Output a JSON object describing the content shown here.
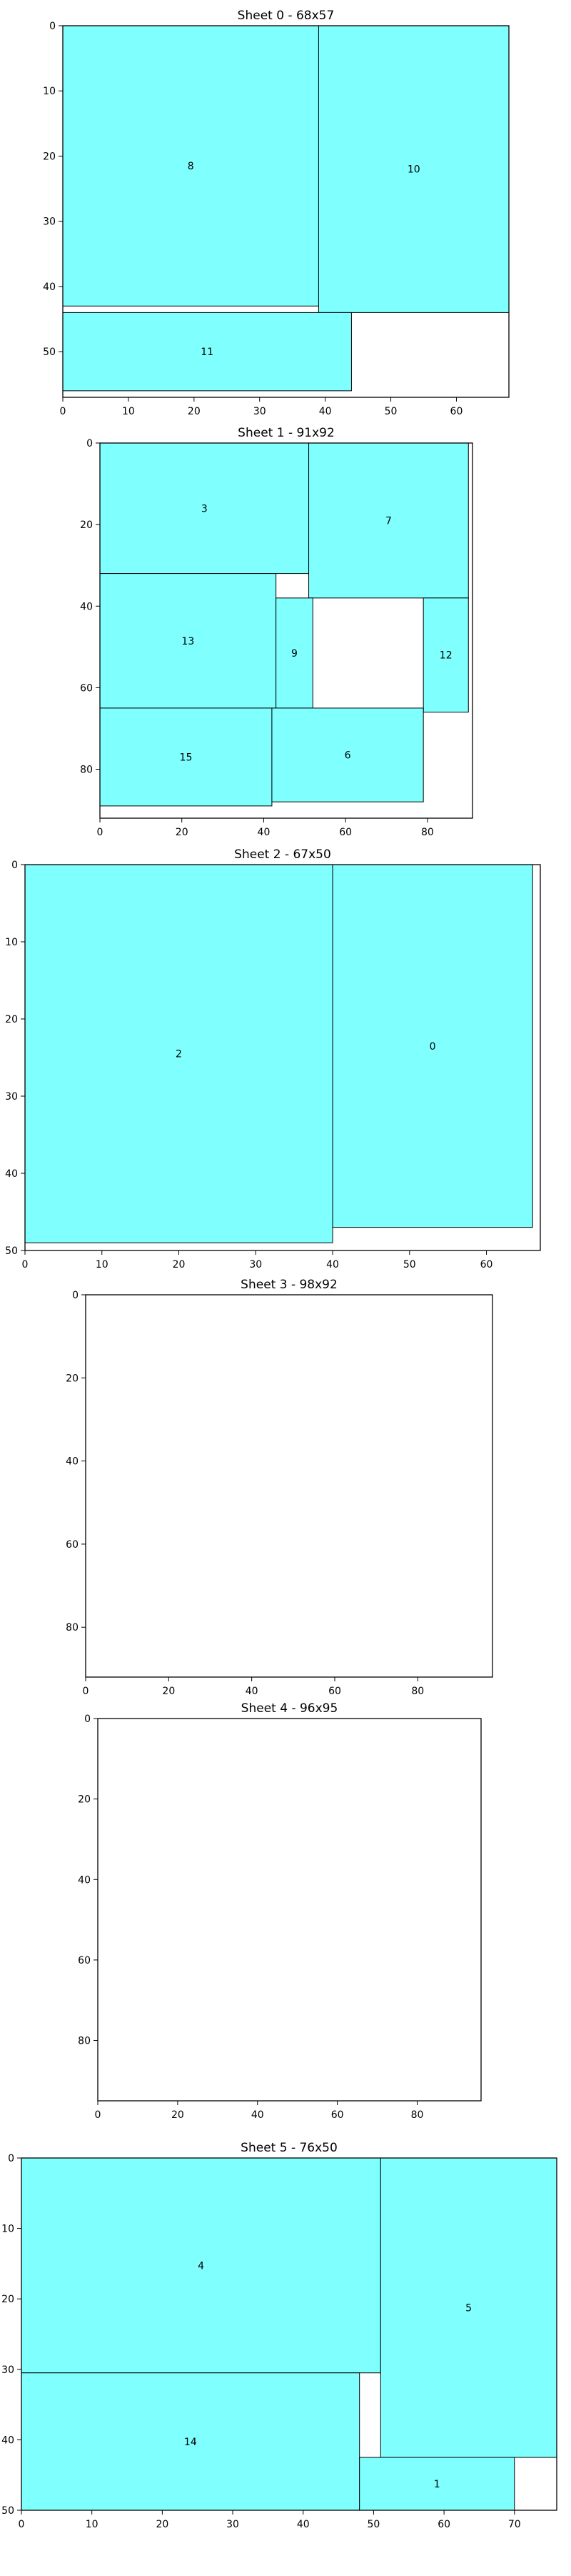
{
  "chart_data": [
    {
      "type": "bar",
      "title": "Sheet 0 - 68x57",
      "xlim": [
        0,
        68
      ],
      "ylim": [
        0,
        57
      ],
      "xticks": [
        0,
        10,
        20,
        30,
        40,
        50,
        60
      ],
      "yticks": [
        0,
        10,
        20,
        30,
        40,
        50
      ],
      "rects": [
        {
          "id": "8",
          "x": 0,
          "y": 0,
          "w": 39,
          "h": 43
        },
        {
          "id": "10",
          "x": 39,
          "y": 0,
          "w": 29,
          "h": 44
        },
        {
          "id": "11",
          "x": 0,
          "y": 44,
          "w": 44,
          "h": 12
        }
      ]
    },
    {
      "type": "bar",
      "title": "Sheet 1 - 91x92",
      "xlim": [
        0,
        91
      ],
      "ylim": [
        0,
        92
      ],
      "xticks": [
        0,
        20,
        40,
        60,
        80
      ],
      "yticks": [
        0,
        20,
        40,
        60,
        80
      ],
      "rects": [
        {
          "id": "3",
          "x": 0,
          "y": 0,
          "w": 51,
          "h": 32
        },
        {
          "id": "7",
          "x": 51,
          "y": 0,
          "w": 39,
          "h": 38
        },
        {
          "id": "13",
          "x": 0,
          "y": 32,
          "w": 43,
          "h": 33
        },
        {
          "id": "9",
          "x": 43,
          "y": 38,
          "w": 9,
          "h": 27
        },
        {
          "id": "12",
          "x": 79,
          "y": 38,
          "w": 11,
          "h": 28
        },
        {
          "id": "15",
          "x": 0,
          "y": 65,
          "w": 42,
          "h": 24
        },
        {
          "id": "6",
          "x": 42,
          "y": 65,
          "w": 37,
          "h": 23
        }
      ]
    },
    {
      "type": "bar",
      "title": "Sheet 2 - 67x50",
      "xlim": [
        0,
        67
      ],
      "ylim": [
        0,
        50
      ],
      "xticks": [
        0,
        10,
        20,
        30,
        40,
        50,
        60
      ],
      "yticks": [
        0,
        10,
        20,
        30,
        40,
        50
      ],
      "rects": [
        {
          "id": "2",
          "x": 0,
          "y": 0,
          "w": 40,
          "h": 49
        },
        {
          "id": "0",
          "x": 40,
          "y": 0,
          "w": 26,
          "h": 47
        }
      ]
    },
    {
      "type": "bar",
      "title": "Sheet 3 - 98x92",
      "xlim": [
        0,
        98
      ],
      "ylim": [
        0,
        92
      ],
      "xticks": [
        0,
        20,
        40,
        60,
        80
      ],
      "yticks": [
        0,
        20,
        40,
        60,
        80
      ],
      "rects": []
    },
    {
      "type": "bar",
      "title": "Sheet 4 - 96x95",
      "xlim": [
        0,
        96
      ],
      "ylim": [
        0,
        95
      ],
      "xticks": [
        0,
        20,
        40,
        60,
        80
      ],
      "yticks": [
        0,
        20,
        40,
        60,
        80
      ],
      "rects": []
    },
    {
      "type": "bar",
      "title": "Sheet 5 - 76x50",
      "xlim": [
        0,
        76
      ],
      "ylim": [
        0,
        50
      ],
      "xticks": [
        0,
        10,
        20,
        30,
        40,
        50,
        60,
        70
      ],
      "yticks": [
        0,
        10,
        20,
        30,
        40,
        50
      ],
      "rects": [
        {
          "id": "4",
          "x": 0,
          "y": 0,
          "w": 51,
          "h": 30.5
        },
        {
          "id": "5",
          "x": 51,
          "y": 0,
          "w": 25,
          "h": 42.5
        },
        {
          "id": "14",
          "x": 0,
          "y": 30.5,
          "w": 48,
          "h": 19.5
        },
        {
          "id": "1",
          "x": 48,
          "y": 42.5,
          "w": 22,
          "h": 7.5
        }
      ]
    }
  ],
  "colors": {
    "fill": "#80ffff",
    "stroke": "#000000"
  }
}
